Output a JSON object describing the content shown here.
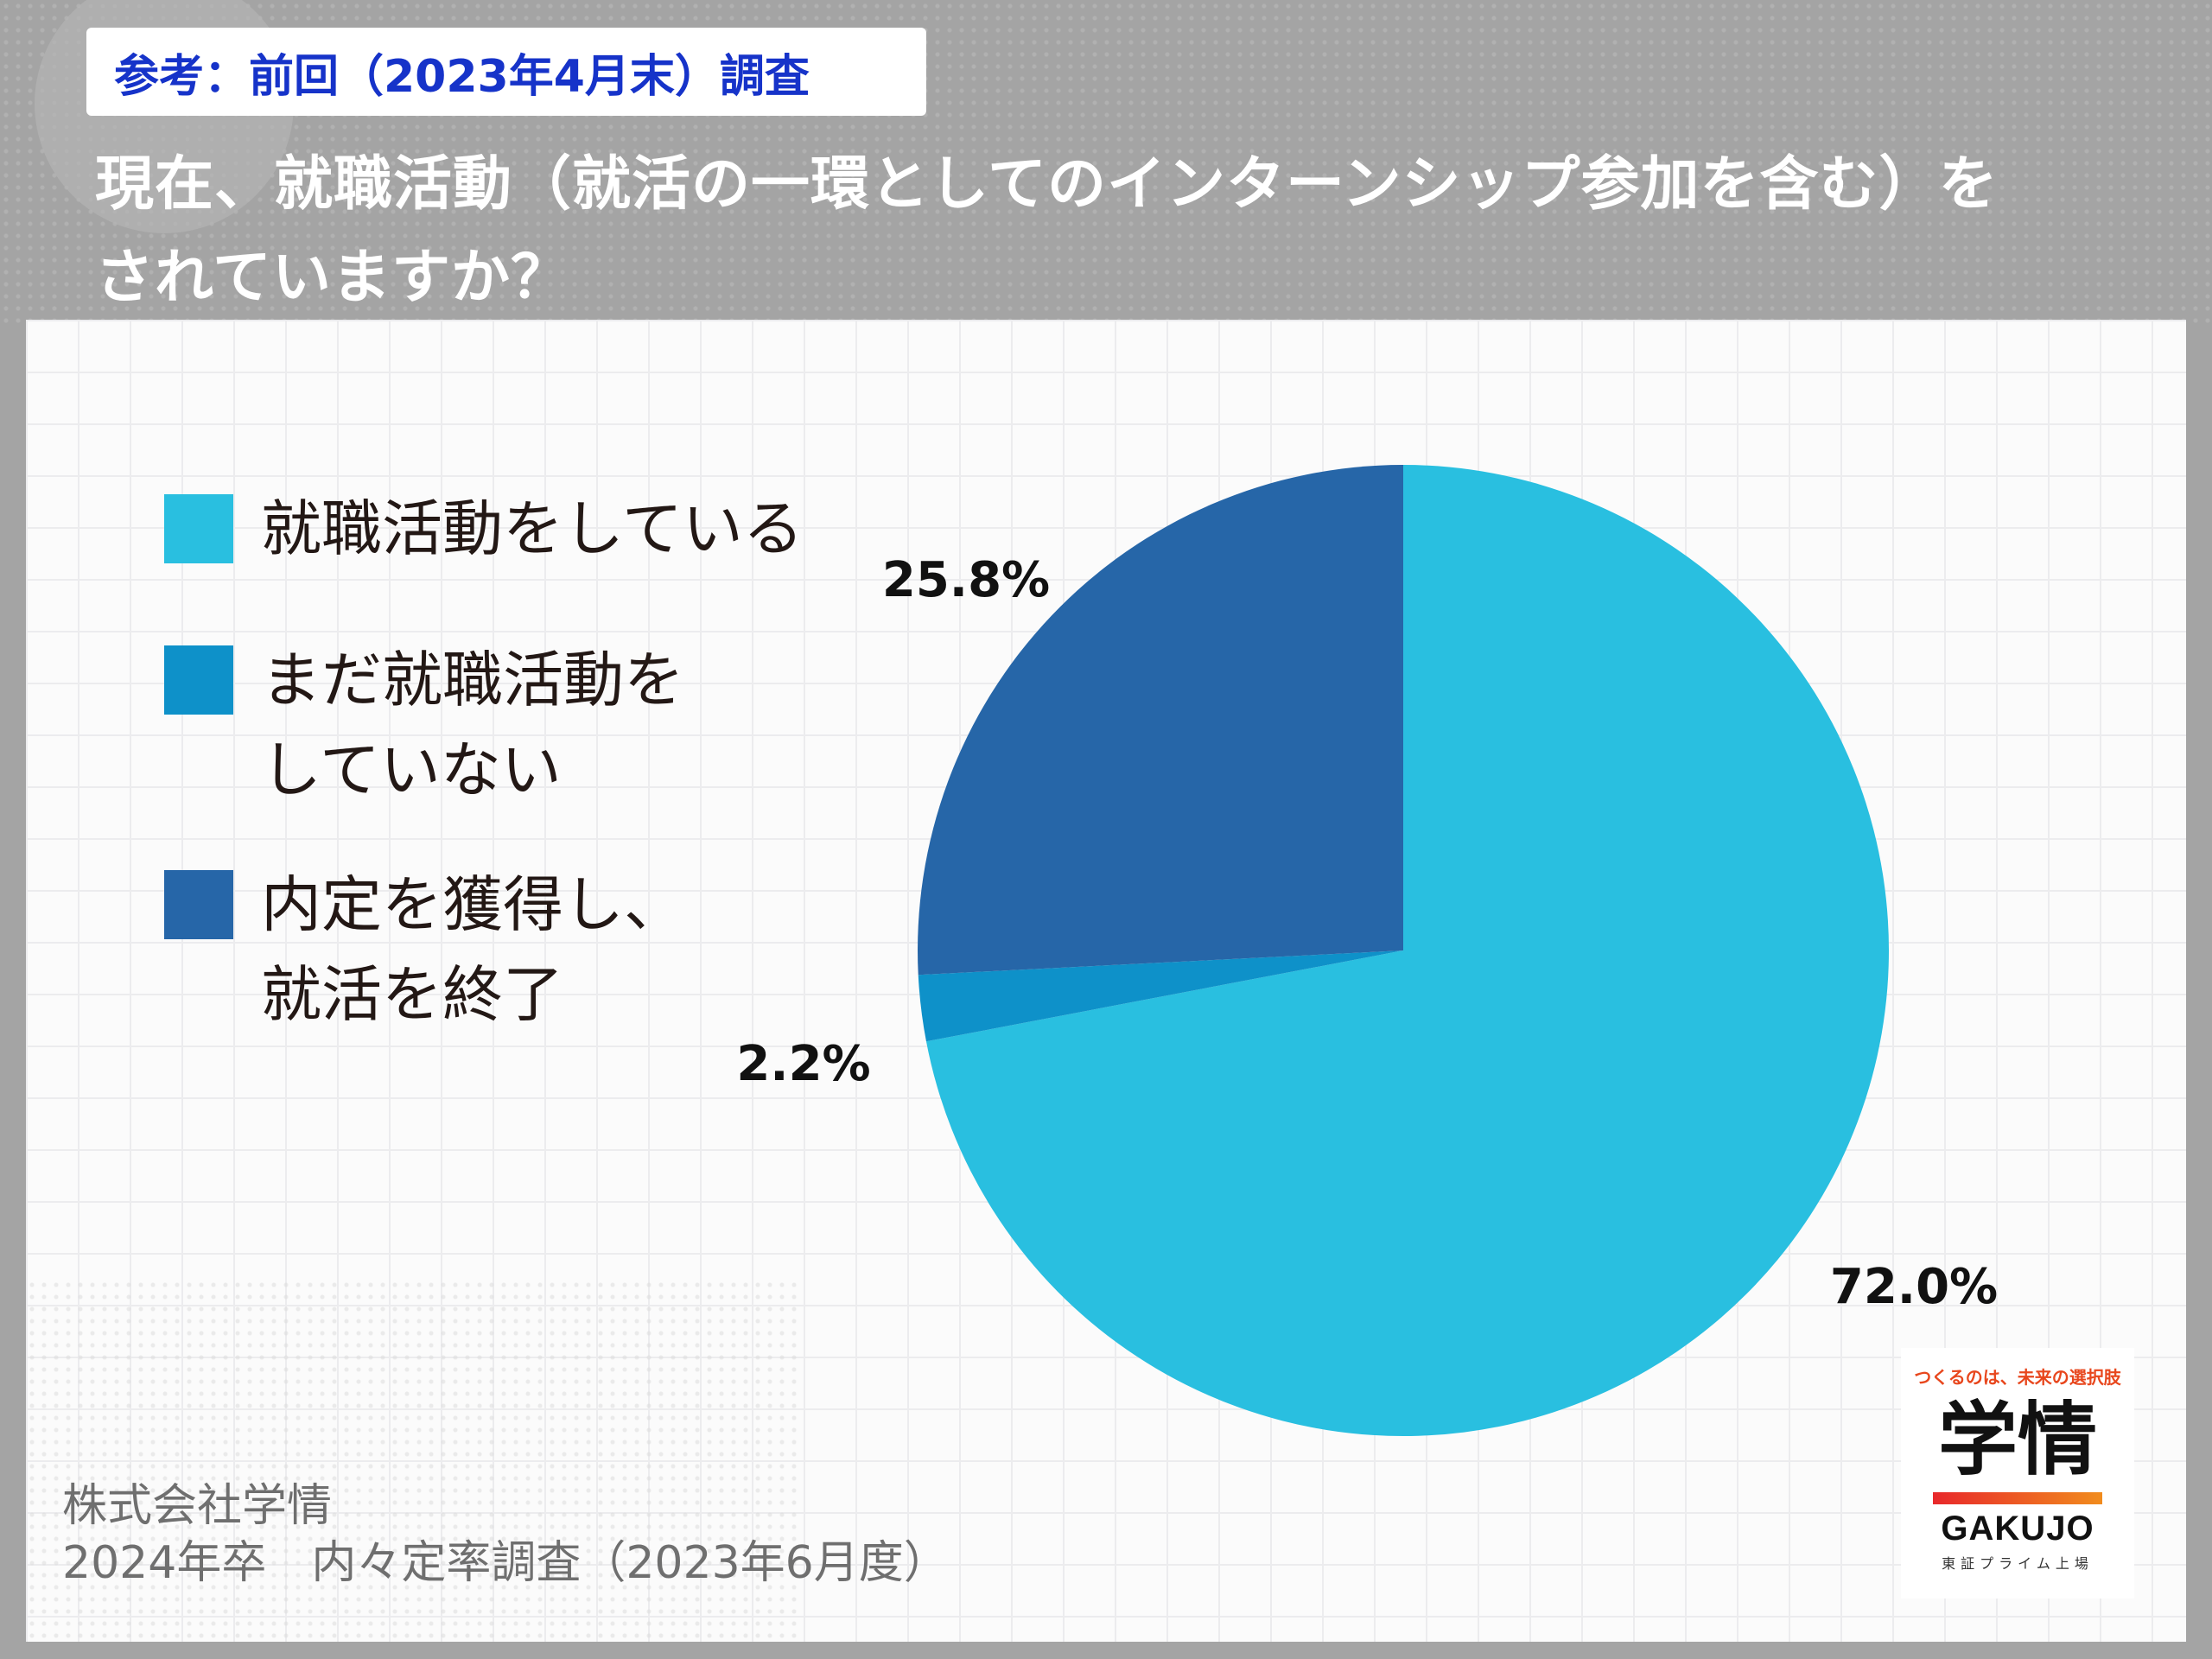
{
  "header": {
    "tag": "参考：前回（2023年4月末）調査",
    "title_line1": "現在、就職活動（就活の一環としてのインターンシップ参加を含む）を",
    "title_line2": "されていますか？"
  },
  "chart_data": {
    "type": "pie",
    "legend_position": "left",
    "slices": [
      {
        "label": "就職活動をしている",
        "value": 72.0,
        "value_label": "72.0%",
        "color": "#29bfe0"
      },
      {
        "label": "まだ就職活動をしていない",
        "value": 2.2,
        "value_label": "2.2%",
        "color": "#0e91c9"
      },
      {
        "label": "内定を獲得し、就活を終了",
        "value": 25.8,
        "value_label": "25.8%",
        "color": "#2666a8"
      }
    ]
  },
  "legend": {
    "items": [
      {
        "lines": [
          "就職活動をしている"
        ],
        "color": "#29bfe0"
      },
      {
        "lines": [
          "まだ就職活動を",
          "していない"
        ],
        "color": "#0e91c9"
      },
      {
        "lines": [
          "内定を獲得し、",
          "就活を終了"
        ],
        "color": "#2666a8"
      }
    ]
  },
  "footer": {
    "line1": "株式会社学情",
    "line2": "2024年卒　内々定率調査（2023年6月度）"
  },
  "logo": {
    "tagline": "つくるのは、未来の選択肢",
    "name": "学情",
    "latin": "GAKUJO",
    "sub": "東証プライム上場"
  }
}
